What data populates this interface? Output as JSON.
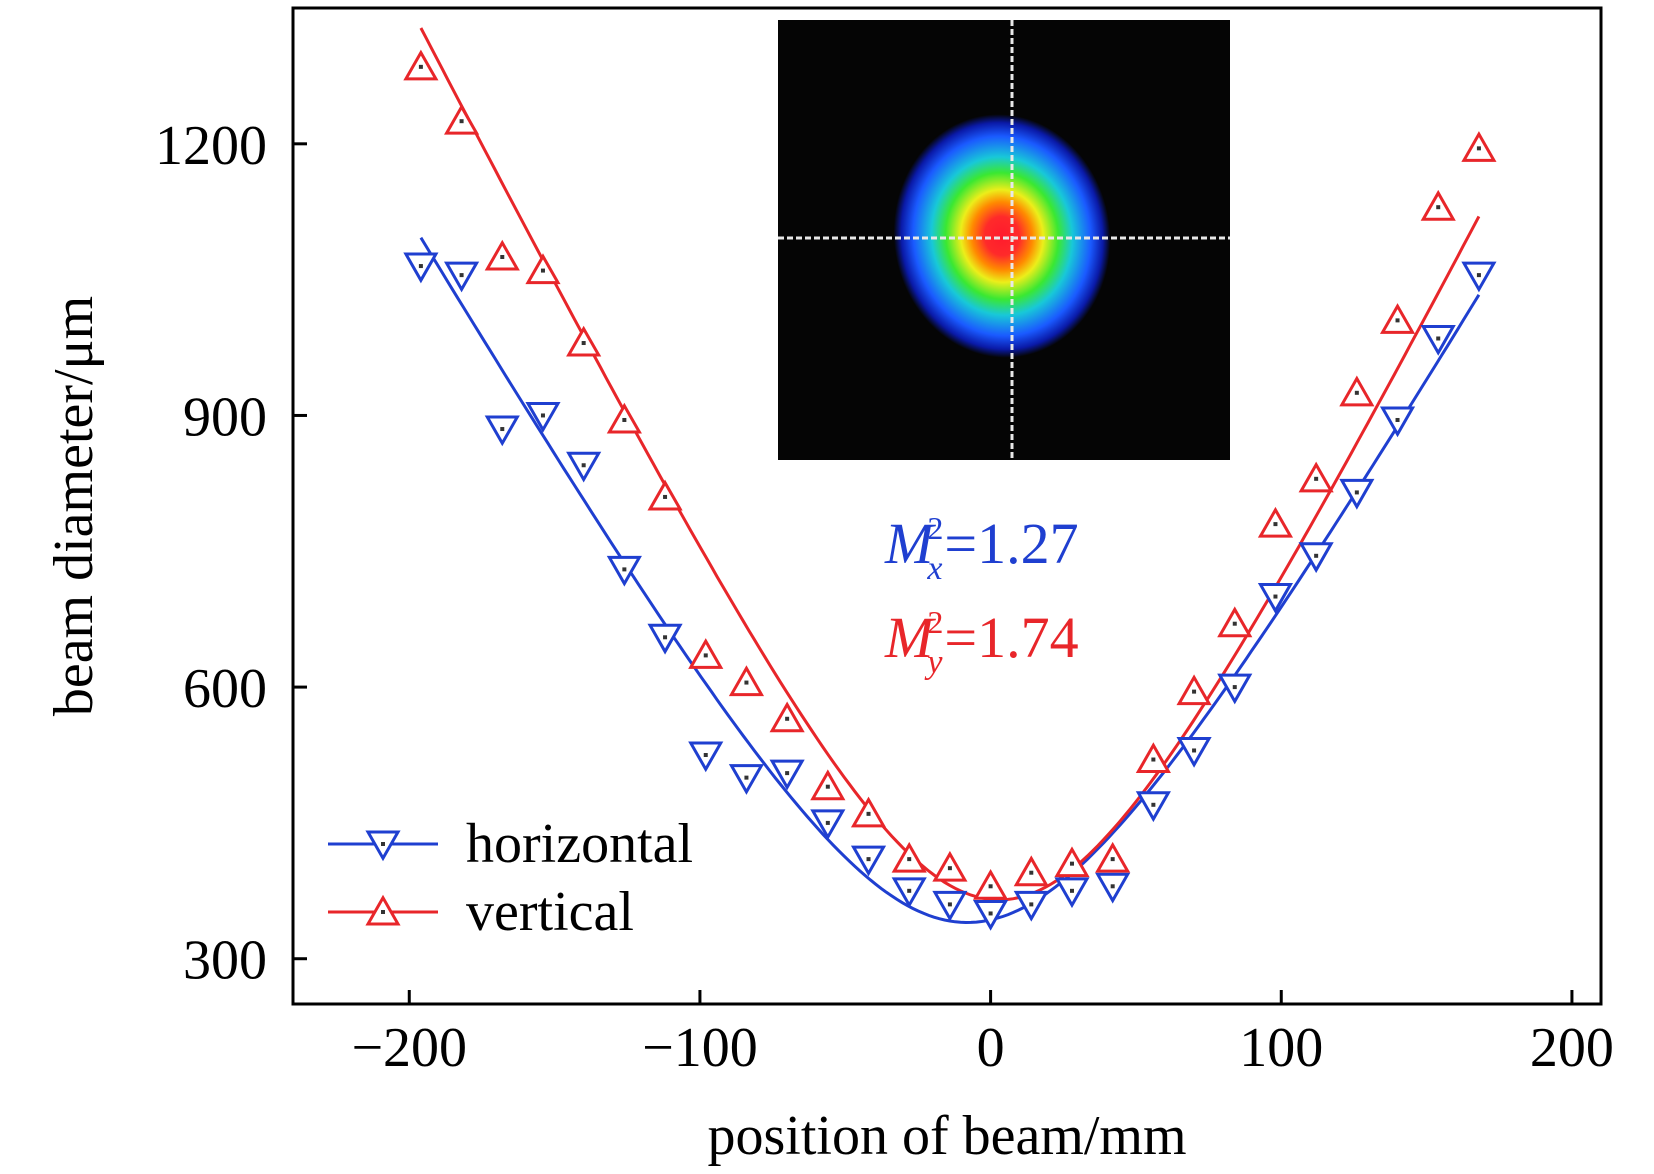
{
  "chart_data": {
    "type": "scatter",
    "title": "",
    "xlabel": "position of beam/mm",
    "ylabel": "beam diameter/μm",
    "xlim": [
      -240,
      210
    ],
    "ylim": [
      250,
      1350
    ],
    "xticks": [
      -200,
      -100,
      0,
      100,
      200
    ],
    "yticks": [
      300,
      600,
      900,
      1200
    ],
    "xtick_labels": [
      "−200",
      "−100",
      "0",
      "100",
      "200"
    ],
    "ytick_labels": [
      "300",
      "600",
      "900",
      "1200"
    ],
    "grid": false,
    "legend_position": "bottom-left",
    "series": [
      {
        "name": "horizontal",
        "color": "#1f3fd0",
        "marker": "triangle-down",
        "x": [
          -196,
          -182,
          -168,
          -154,
          -140,
          -126,
          -112,
          -98,
          -84,
          -70,
          -56,
          -42,
          -28,
          -14,
          0,
          14,
          28,
          42,
          56,
          70,
          84,
          98,
          112,
          126,
          140,
          154,
          168
        ],
        "y": [
          1065,
          1055,
          885,
          900,
          845,
          730,
          655,
          525,
          500,
          505,
          450,
          410,
          375,
          360,
          350,
          360,
          375,
          380,
          470,
          530,
          600,
          700,
          745,
          815,
          895,
          985,
          1055
        ],
        "fit": {
          "waist_um": 340,
          "waist_position_mm": -8
        }
      },
      {
        "name": "vertical",
        "color": "#e8262a",
        "marker": "triangle-up",
        "x": [
          -196,
          -182,
          -168,
          -154,
          -140,
          -126,
          -112,
          -98,
          -84,
          -70,
          -56,
          -42,
          -28,
          -14,
          0,
          14,
          28,
          42,
          56,
          70,
          84,
          98,
          112,
          126,
          140,
          154,
          168
        ],
        "y": [
          1285,
          1225,
          1075,
          1060,
          980,
          895,
          810,
          635,
          605,
          565,
          490,
          460,
          410,
          400,
          380,
          395,
          405,
          410,
          520,
          595,
          670,
          780,
          830,
          925,
          1005,
          1130,
          1195
        ],
        "fit": {
          "waist_um": 365,
          "waist_position_mm": 3
        }
      }
    ],
    "annotations": [
      {
        "id": "mx",
        "base": "M",
        "sub": "x",
        "sup": "2",
        "value": "=1.27",
        "color": "#1f3fd0"
      },
      {
        "id": "my",
        "base": "M",
        "sub": "y",
        "sup": "2",
        "value": "=1.74",
        "color": "#e8262a"
      }
    ],
    "inset": {
      "kind": "beam-profile-image",
      "background": "#050505",
      "crosshair_color": "#e8e8e8"
    }
  }
}
